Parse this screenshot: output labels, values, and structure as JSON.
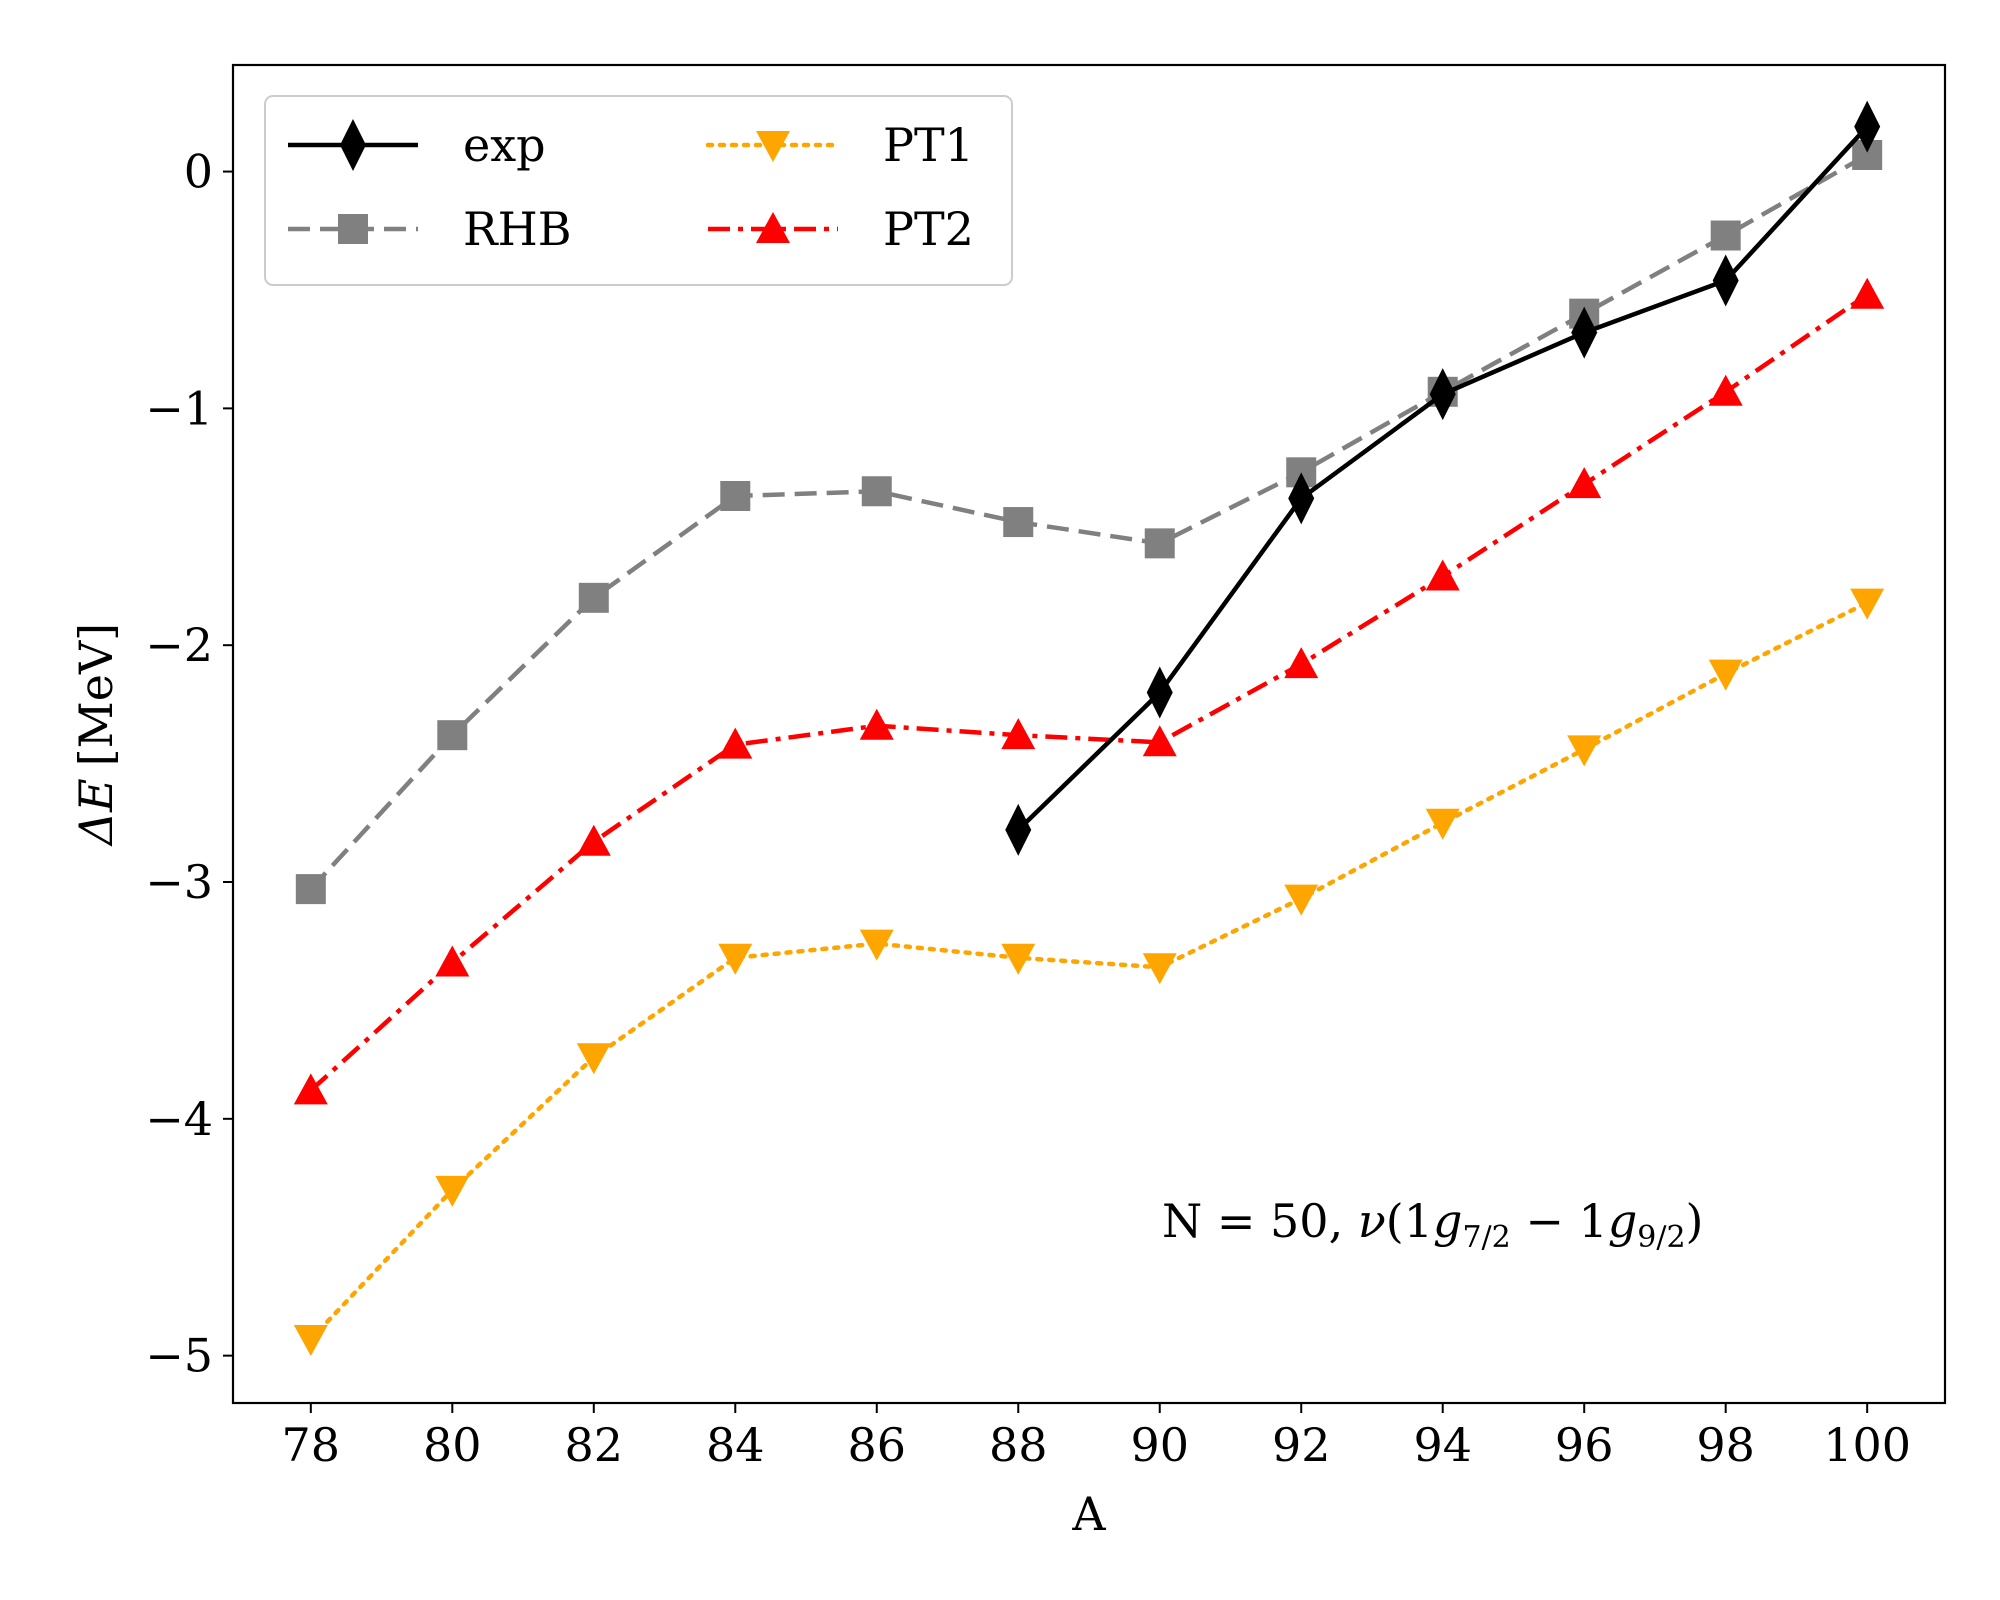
{
  "chart_data": {
    "type": "line",
    "title": "",
    "xlabel": "A",
    "ylabel_symbol": "ΔE",
    "ylabel_unit": "[MeV]",
    "xlim": [
      76.9,
      101.1
    ],
    "ylim": [
      -5.2,
      0.45
    ],
    "xticks": [
      78,
      80,
      82,
      84,
      86,
      88,
      90,
      92,
      94,
      96,
      98,
      100
    ],
    "yticks": [
      0,
      -1,
      -2,
      -3,
      -4,
      -5
    ],
    "ytick_labels": [
      "0",
      "−1",
      "−2",
      "−3",
      "−4",
      "−5"
    ],
    "grid": false,
    "legend_position": "top-left",
    "annotation": {
      "prefix": "N = 50, ",
      "nu": "ν",
      "open": "(1",
      "g1": "g",
      "sub1": "7/2",
      "minus": " − 1",
      "g2": "g",
      "sub2": "9/2",
      "close": ")"
    },
    "series": [
      {
        "name": "exp",
        "color": "#000000",
        "line_style": "solid",
        "marker": "diamond",
        "x": [
          88,
          90,
          92,
          94,
          96,
          98,
          100
        ],
        "values": [
          -2.78,
          -2.2,
          -1.38,
          -0.94,
          -0.68,
          -0.46,
          0.19
        ]
      },
      {
        "name": "RHB",
        "color": "#808080",
        "line_style": "dashed",
        "marker": "square",
        "x": [
          78,
          80,
          82,
          84,
          86,
          88,
          90,
          92,
          94,
          96,
          98,
          100
        ],
        "values": [
          -3.03,
          -2.38,
          -1.8,
          -1.37,
          -1.35,
          -1.48,
          -1.57,
          -1.27,
          -0.93,
          -0.6,
          -0.27,
          0.07
        ]
      },
      {
        "name": "PT1",
        "color": "#FFA500",
        "line_style": "dotted",
        "marker": "triangle-down",
        "x": [
          78,
          80,
          82,
          84,
          86,
          88,
          90,
          92,
          94,
          96,
          98,
          100
        ],
        "values": [
          -4.93,
          -4.3,
          -3.74,
          -3.32,
          -3.26,
          -3.32,
          -3.36,
          -3.07,
          -2.75,
          -2.44,
          -2.12,
          -1.82
        ]
      },
      {
        "name": "PT2",
        "color": "#FF0000",
        "line_style": "dashdot",
        "marker": "triangle-up",
        "x": [
          78,
          80,
          82,
          84,
          86,
          88,
          90,
          92,
          94,
          96,
          98,
          100
        ],
        "values": [
          -3.88,
          -3.34,
          -2.83,
          -2.42,
          -2.34,
          -2.38,
          -2.41,
          -2.08,
          -1.71,
          -1.32,
          -0.93,
          -0.52
        ]
      }
    ]
  }
}
